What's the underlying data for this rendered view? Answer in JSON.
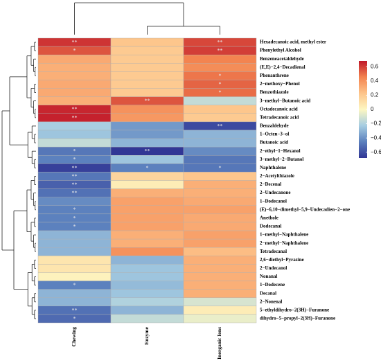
{
  "chart_data": {
    "type": "heatmap",
    "categories": [
      "Hexadecanoic acid, methyl ester",
      "Phenylethyl Alcohol",
      "Benzeneacetaldehyde",
      "(E,E)−2,4−Decadienal",
      "Phenanthrene",
      "2−methoxy−Phenol",
      "Benzothiazole",
      "3−methyl−Butanoic acid",
      "Octadecanoic acid",
      "Tetradecanoic acid",
      "Benzaldehyde",
      "1−Octen−3−ol",
      "Butanoic acid",
      "2−ethyl−1−Hexanol",
      "3−methyl−2−Butanol",
      "Naphthalene",
      "2−Acetylthiazole",
      "2−Decenal",
      "2−Undecanone",
      "1−Dodecanol",
      "(E)−6,10−dimethyl−5,9−Undecadien−2−one",
      "Anethole",
      "Dodecanal",
      "1−methyl−Naphthalene",
      "2−methyl−Naphthalene",
      "Tetradecanal",
      "2,6−diethyl−Pyrazine",
      "2−Undecanol",
      "Nonanal",
      "1−Dodecene",
      "Decanal",
      "2−Nonenal",
      "5−ethyldihydro−2(3H)−Furanone",
      "dihydro−5−propyl−2(3H)−Furanone"
    ],
    "series": [
      {
        "name": "Chewing",
        "values": [
          0.62,
          0.55,
          0.32,
          0.3,
          0.3,
          0.32,
          0.32,
          0.3,
          0.65,
          0.66,
          -0.22,
          -0.25,
          -0.15,
          -0.48,
          -0.45,
          -0.65,
          -0.48,
          -0.55,
          -0.5,
          -0.42,
          -0.45,
          -0.45,
          -0.45,
          -0.3,
          -0.3,
          -0.3,
          0.08,
          0.08,
          0.02,
          -0.45,
          -0.3,
          -0.3,
          -0.5,
          -0.52
        ],
        "stars": [
          "**",
          "*",
          null,
          null,
          null,
          null,
          null,
          null,
          "**",
          "**",
          null,
          null,
          null,
          "*",
          "*",
          "**",
          "**",
          "**",
          "**",
          null,
          "*",
          "*",
          "*",
          null,
          null,
          null,
          null,
          null,
          null,
          "*",
          null,
          null,
          "**",
          "*"
        ]
      },
      {
        "name": "Enzyme",
        "values": [
          0.22,
          0.2,
          0.2,
          0.2,
          0.2,
          0.2,
          0.2,
          0.55,
          0.4,
          0.38,
          -0.38,
          -0.38,
          -0.3,
          -0.68,
          -0.25,
          -0.45,
          0.15,
          0.05,
          0.3,
          0.35,
          0.35,
          0.35,
          0.35,
          0.3,
          0.3,
          0.4,
          -0.3,
          -0.25,
          -0.25,
          -0.28,
          -0.25,
          -0.2,
          -0.3,
          -0.15
        ],
        "stars": [
          null,
          null,
          null,
          null,
          null,
          null,
          null,
          "**",
          null,
          null,
          null,
          null,
          null,
          "**",
          null,
          "*",
          null,
          null,
          null,
          null,
          null,
          null,
          null,
          null,
          null,
          null,
          null,
          null,
          null,
          null,
          null,
          null,
          null,
          null
        ]
      },
      {
        "name": "Inorganic Ions",
        "values": [
          0.58,
          0.6,
          0.45,
          0.42,
          0.48,
          0.52,
          0.5,
          -0.15,
          0.22,
          0.2,
          -0.62,
          -0.3,
          -0.3,
          -0.42,
          -0.48,
          -0.48,
          0.22,
          0.3,
          0.3,
          0.32,
          0.35,
          0.32,
          0.32,
          0.35,
          0.35,
          0.25,
          0.3,
          0.3,
          0.3,
          0.3,
          0.3,
          -0.1,
          0.05,
          -0.05
        ],
        "stars": [
          "**",
          "**",
          null,
          null,
          "*",
          "*",
          "*",
          null,
          null,
          null,
          "**",
          null,
          null,
          null,
          null,
          "*",
          null,
          null,
          null,
          null,
          null,
          null,
          null,
          null,
          null,
          null,
          null,
          null,
          null,
          null,
          null,
          null,
          null,
          null
        ]
      }
    ],
    "zlim": [
      -0.68,
      0.68
    ],
    "zticks": [
      {
        "value": -0.6,
        "label": "−0.6"
      },
      {
        "value": -0.4,
        "label": "−0.4"
      },
      {
        "value": -0.2,
        "label": "−0.2"
      },
      0,
      0.2,
      0.4,
      0.6
    ],
    "colorscale": [
      "#313695",
      "#5b80bd",
      "#a6cde2",
      "#fdf7c2",
      "#fdc48a",
      "#f3834f",
      "#c0182a"
    ]
  }
}
